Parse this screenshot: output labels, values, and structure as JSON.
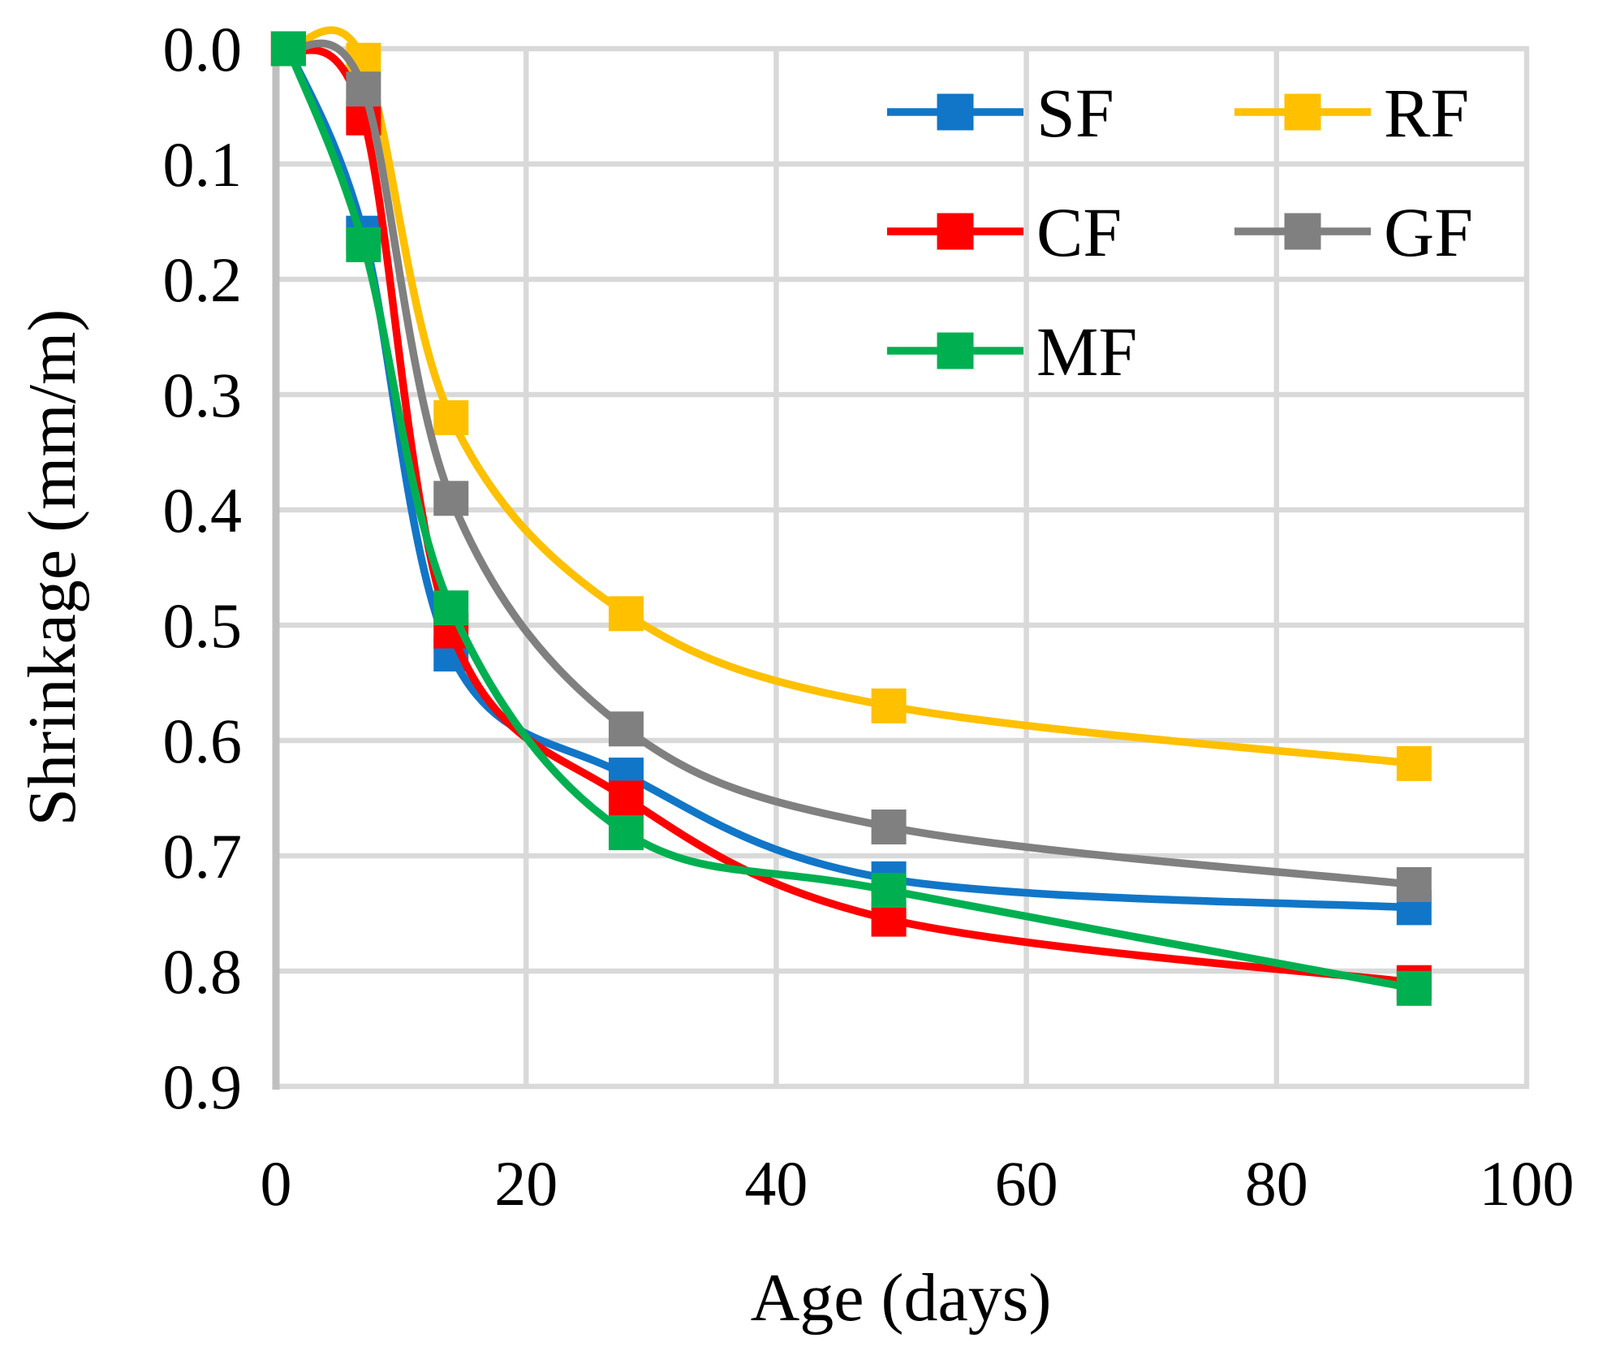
{
  "figure": {
    "background": "#FFFFFF",
    "gridline_color": "#D9D9D9",
    "axis_line_color": "#BFBFBF",
    "text_color": "#000000"
  },
  "chart_data": {
    "type": "line",
    "title": "",
    "xlabel": "Age (days)",
    "ylabel": "Shrinkage (mm/m)",
    "x": [
      1,
      7,
      14,
      28,
      49,
      91
    ],
    "series": [
      {
        "name": "SF",
        "color": "#1176C8",
        "marker": "square",
        "values": [
          0.0,
          0.16,
          0.525,
          0.63,
          0.72,
          0.745
        ]
      },
      {
        "name": "RF",
        "color": "#FFC000",
        "marker": "square",
        "values": [
          0.0,
          0.01,
          0.32,
          0.49,
          0.57,
          0.62
        ]
      },
      {
        "name": "CF",
        "color": "#FF0000",
        "marker": "square",
        "values": [
          0.0,
          0.06,
          0.505,
          0.65,
          0.755,
          0.81
        ]
      },
      {
        "name": "GF",
        "color": "#808080",
        "marker": "square",
        "values": [
          0.0,
          0.035,
          0.39,
          0.59,
          0.675,
          0.725
        ]
      },
      {
        "name": "MF",
        "color": "#00B050",
        "marker": "square",
        "values": [
          0.0,
          0.17,
          0.485,
          0.68,
          0.73,
          0.815
        ]
      }
    ],
    "xlim": [
      0,
      100
    ],
    "ylim": [
      0.0,
      0.9
    ],
    "y_axis_inverted_downward": true,
    "x_ticks": [
      "0",
      "20",
      "40",
      "60",
      "80",
      "100"
    ],
    "y_ticks": [
      "0.0",
      "0.1",
      "0.2",
      "0.3",
      "0.4",
      "0.5",
      "0.6",
      "0.7",
      "0.8",
      "0.9"
    ],
    "grid": "both",
    "smooth_lines": true,
    "legend_position": "top-right-inside",
    "legend_rows": [
      [
        "SF",
        "RF"
      ],
      [
        "CF",
        "GF"
      ],
      [
        "MF"
      ]
    ]
  }
}
